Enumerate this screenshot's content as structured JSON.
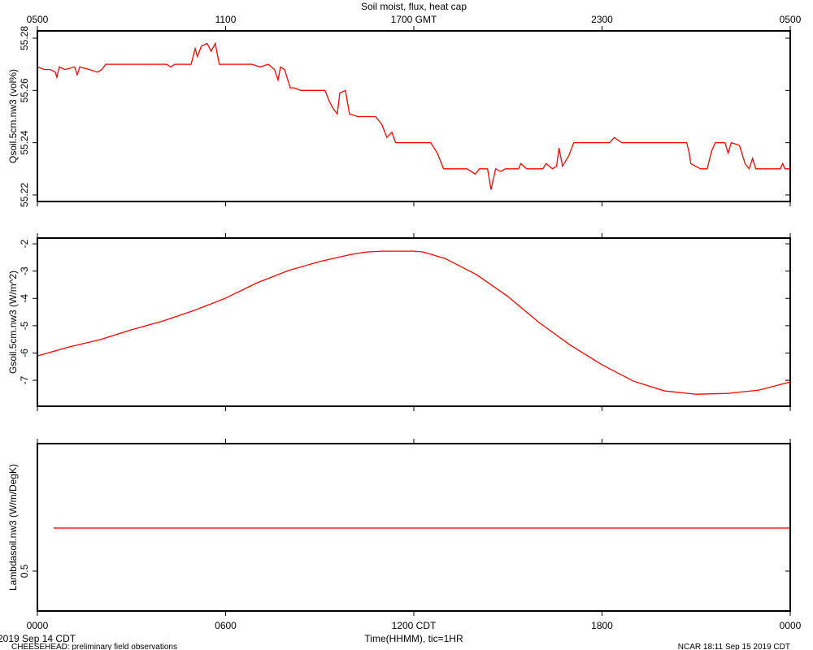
{
  "chart_data": [
    {
      "type": "line",
      "title": "Soil moist, flux, heat cap",
      "ylabel": "Qsoil.5cm.nw3 (vol%)",
      "x2ticks": [
        {
          "value": 0,
          "label": "0500"
        },
        {
          "value": 6,
          "label": "1100"
        },
        {
          "value": 12,
          "label": "1700 GMT"
        },
        {
          "value": 18,
          "label": "2300"
        },
        {
          "value": 24,
          "label": "0500"
        }
      ],
      "xlim": [
        0,
        24
      ],
      "ylim": [
        55.2175,
        55.2828
      ],
      "yticks": [
        55.22,
        55.24,
        55.26,
        55.28
      ],
      "color": "#ff0000",
      "x": [
        0,
        0.23,
        0.41,
        0.57,
        0.62,
        0.7,
        0.88,
        1.19,
        1.27,
        1.35,
        1.66,
        1.92,
        2.05,
        2.18,
        4.12,
        4.25,
        4.38,
        4.9,
        5.03,
        5.1,
        5.23,
        5.41,
        5.54,
        5.67,
        5.75,
        5.8,
        6.84,
        7.1,
        7.36,
        7.56,
        7.67,
        7.75,
        7.88,
        8.06,
        8.19,
        8.39,
        9.17,
        9.3,
        9.43,
        9.56,
        9.64,
        9.82,
        9.95,
        10.21,
        10.78,
        10.98,
        11.14,
        11.3,
        11.42,
        12.54,
        12.75,
        12.95,
        13.7,
        13.96,
        14.09,
        14.35,
        14.46,
        14.61,
        14.77,
        14.92,
        15.34,
        15.41,
        15.6,
        16.11,
        16.22,
        16.42,
        16.55,
        16.63,
        16.74,
        16.94,
        17.1,
        18.24,
        18.39,
        18.63,
        20.7,
        20.78,
        20.83,
        20.98,
        21.14,
        21.35,
        21.5,
        21.61,
        21.92,
        22.02,
        22.12,
        22.38,
        22.56,
        22.69,
        22.8,
        22.9,
        23.68,
        23.76,
        23.83,
        24
      ],
      "values": [
        55.269,
        55.268,
        55.268,
        55.267,
        55.265,
        55.269,
        55.268,
        55.269,
        55.266,
        55.269,
        55.268,
        55.267,
        55.268,
        55.27,
        55.27,
        55.269,
        55.27,
        55.27,
        55.276,
        55.273,
        55.277,
        55.278,
        55.275,
        55.278,
        55.273,
        55.27,
        55.27,
        55.269,
        55.27,
        55.268,
        55.264,
        55.269,
        55.268,
        55.261,
        55.261,
        55.26,
        55.26,
        55.256,
        55.253,
        55.251,
        55.259,
        55.26,
        55.251,
        55.25,
        55.25,
        55.247,
        55.242,
        55.244,
        55.24,
        55.24,
        55.236,
        55.23,
        55.23,
        55.228,
        55.23,
        55.23,
        55.222,
        55.23,
        55.229,
        55.23,
        55.23,
        55.232,
        55.23,
        55.23,
        55.232,
        55.23,
        55.231,
        55.238,
        55.231,
        55.235,
        55.24,
        55.24,
        55.242,
        55.24,
        55.24,
        55.236,
        55.232,
        55.231,
        55.23,
        55.23,
        55.237,
        55.24,
        55.24,
        55.236,
        55.24,
        55.239,
        55.232,
        55.23,
        55.234,
        55.23,
        55.23,
        55.232,
        55.23,
        55.23
      ]
    },
    {
      "type": "line",
      "ylabel": "Gsoil.5cm.nw3 (W/m^2)",
      "xlim": [
        0,
        24
      ],
      "ylim": [
        -7.95,
        -1.79
      ],
      "yticks": [
        -7,
        -6,
        -5,
        -4,
        -3,
        -2
      ],
      "color": "#ff0000",
      "x": [
        0,
        1,
        2,
        3,
        4,
        5,
        6,
        7,
        8,
        9,
        10,
        10.5,
        11,
        11.5,
        12,
        12.3,
        13,
        14,
        15,
        16,
        17,
        18,
        19,
        20,
        21,
        22,
        23,
        24
      ],
      "values": [
        -6.11,
        -5.78,
        -5.51,
        -5.15,
        -4.83,
        -4.44,
        -3.99,
        -3.43,
        -2.98,
        -2.65,
        -2.39,
        -2.3,
        -2.27,
        -2.27,
        -2.27,
        -2.3,
        -2.54,
        -3.13,
        -3.93,
        -4.89,
        -5.72,
        -6.43,
        -7.03,
        -7.39,
        -7.51,
        -7.48,
        -7.36,
        -7.06
      ]
    },
    {
      "type": "line",
      "ylabel": "Lambdasoil.nw3 (W/m/DegK)",
      "xlabel": "Time(HHMM), tic=1HR",
      "xticks": [
        {
          "value": 0,
          "label": "0000"
        },
        {
          "value": 6,
          "label": "0600"
        },
        {
          "value": 12,
          "label": "1200 CDT"
        },
        {
          "value": 18,
          "label": "1800"
        },
        {
          "value": 24,
          "label": "0000"
        }
      ],
      "xlim": [
        0,
        24
      ],
      "ylim": [
        0.4075,
        0.796
      ],
      "yticks": [
        0.5
      ],
      "color": "#ff0000",
      "x": [
        0.52,
        24
      ],
      "values": [
        0.6,
        0.6
      ],
      "annotations": [
        "2019 Sep 14 CDT",
        "CHEESEHEAD: preliminary field observations",
        "NCAR 18:11 Sep 15 2019 CDT"
      ]
    }
  ]
}
